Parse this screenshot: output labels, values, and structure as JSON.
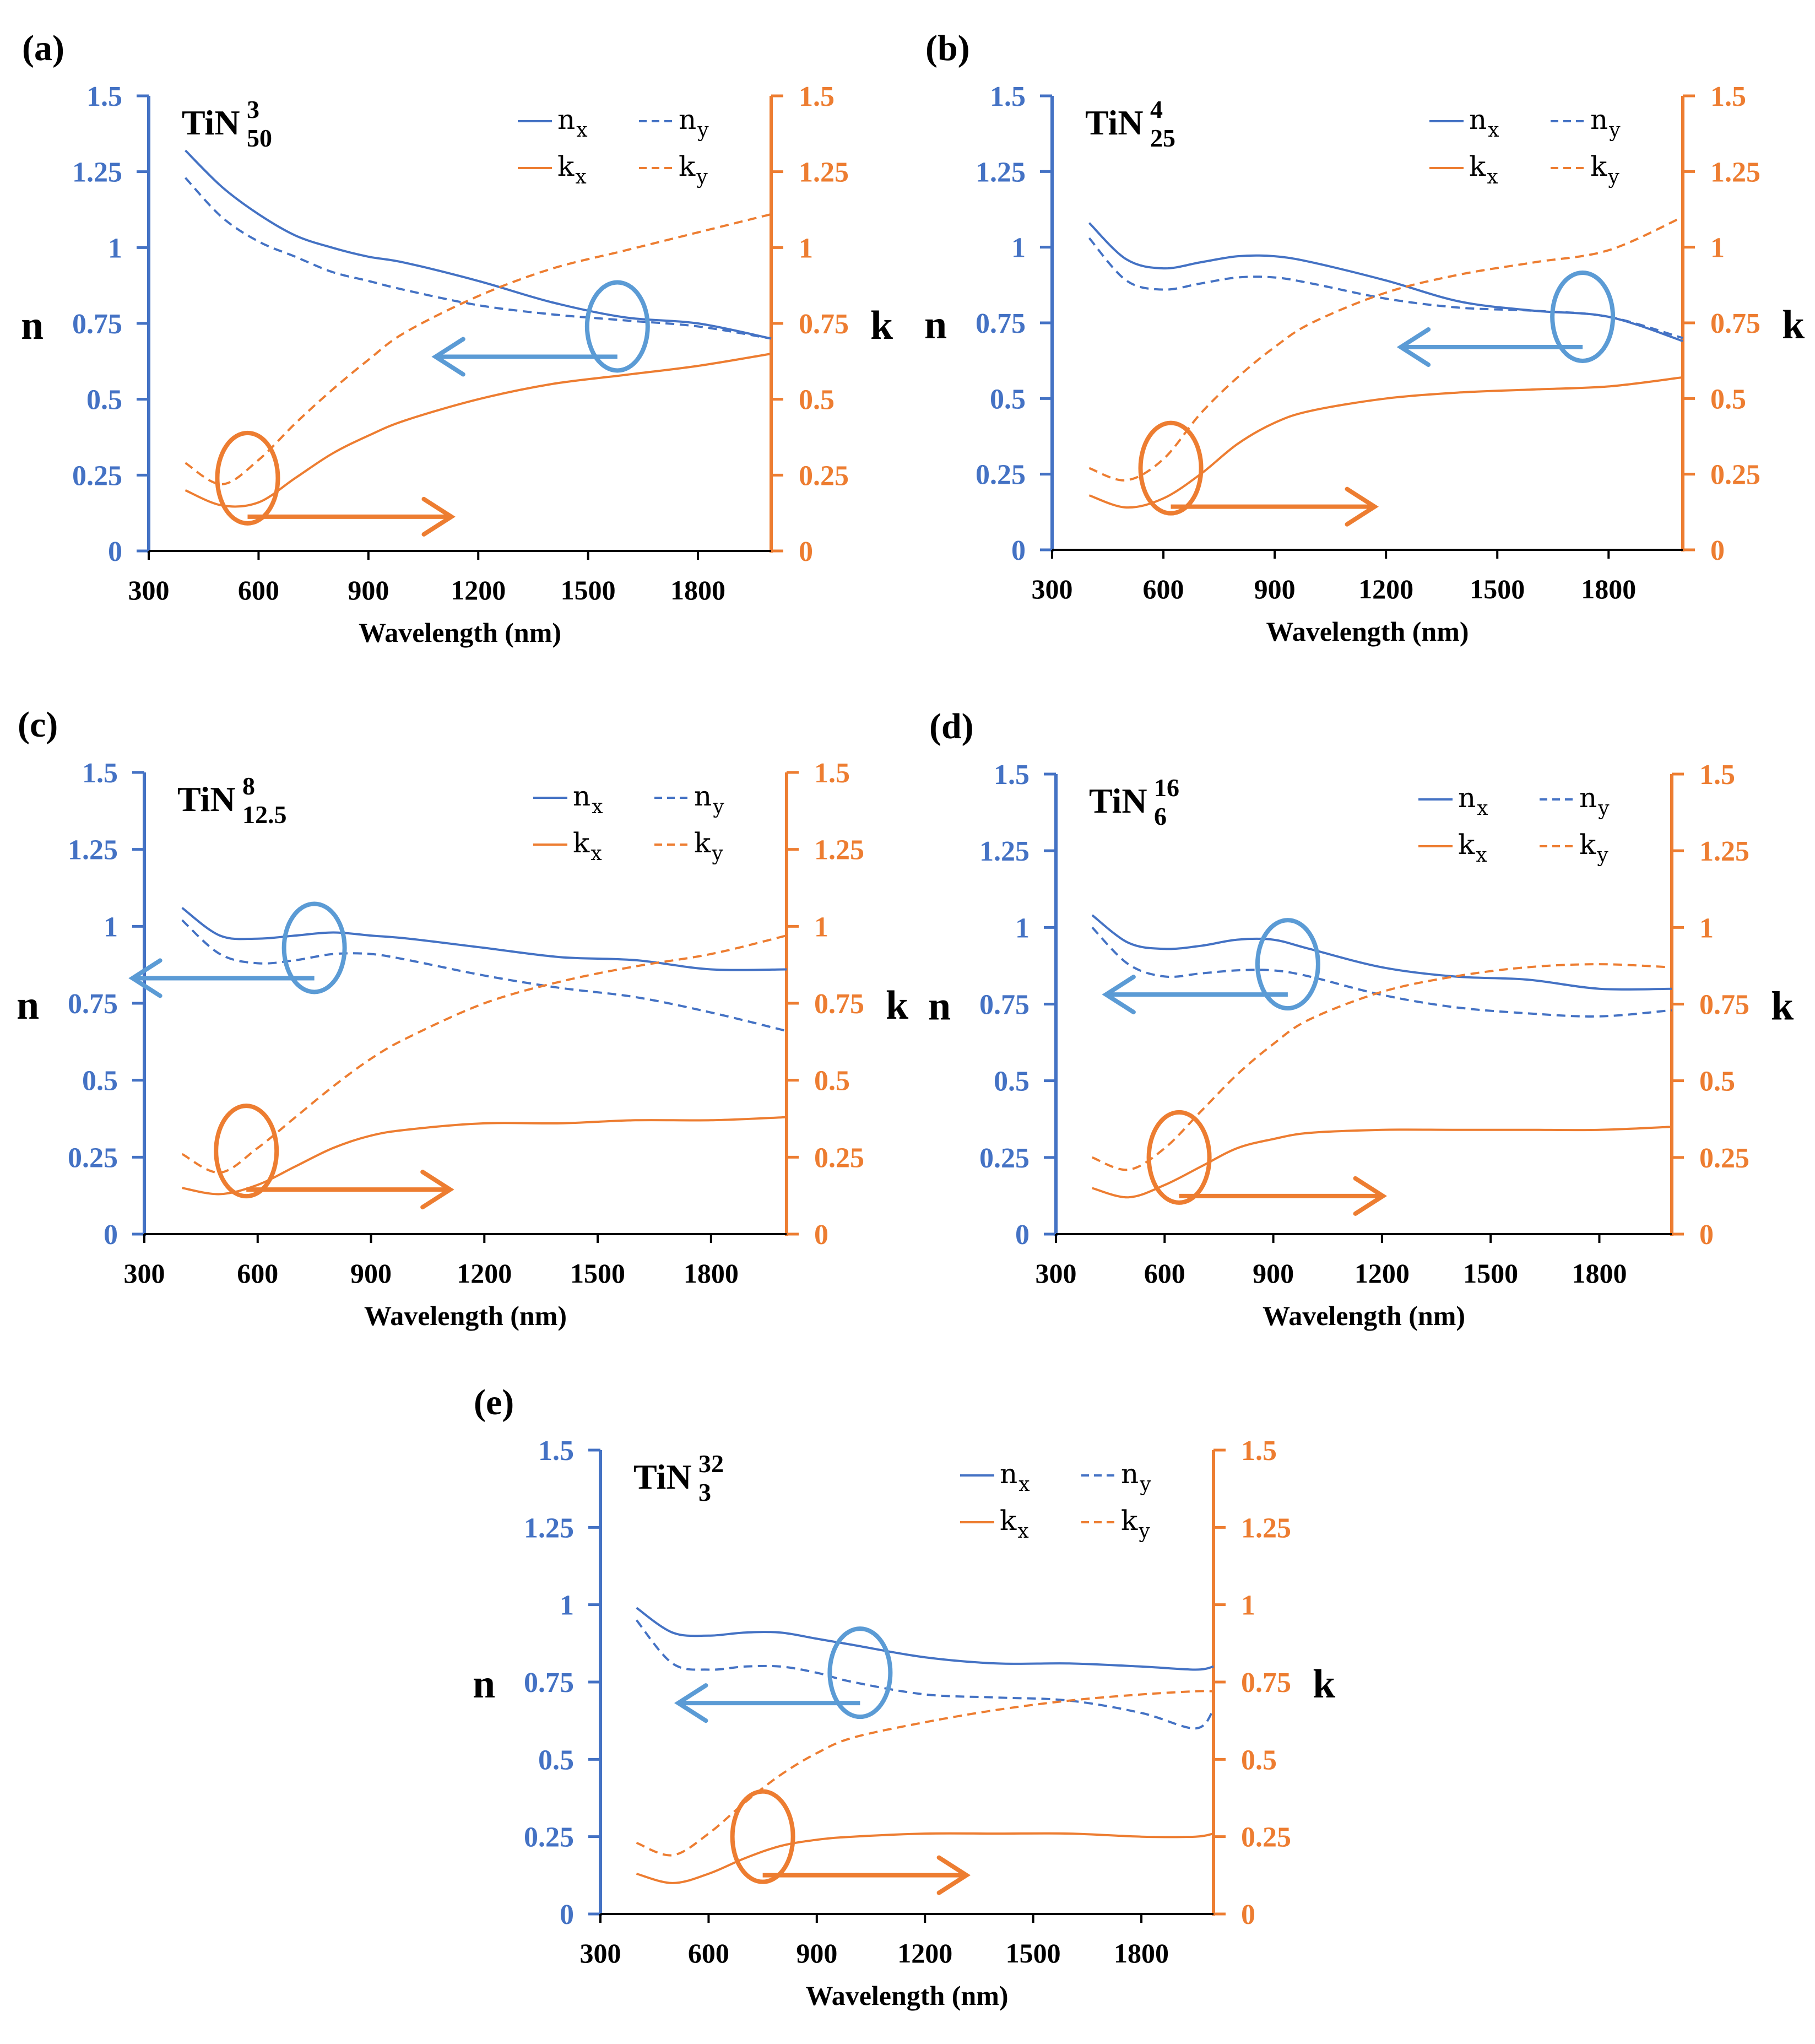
{
  "colors": {
    "n": "#4472C4",
    "k": "#ED7D31",
    "n_marker": "#5B9BD5",
    "k_marker": "#ED7D31"
  },
  "legend": {
    "nx": {
      "main": "n",
      "sub": "x"
    },
    "ny": {
      "main": "n",
      "sub": "y"
    },
    "kx": {
      "main": "k",
      "sub": "x"
    },
    "ky": {
      "main": "k",
      "sub": "y"
    }
  },
  "chart_data": [
    {
      "type": "line",
      "panel": "(a)",
      "title": {
        "main": "TiN",
        "sup": "3",
        "sub": "50"
      },
      "xlabel": "Wavelength (nm)",
      "ylabel_left": "n",
      "ylabel_right": "k",
      "xlim": [
        300,
        2000
      ],
      "ylim": [
        0,
        1.5
      ],
      "xticks": [
        "300",
        "600",
        "900",
        "1200",
        "1500",
        "1800"
      ],
      "yticks": [
        "0",
        "0.25",
        "0.5",
        "0.75",
        "1",
        "1.25",
        "1.5"
      ],
      "x": [
        400,
        500,
        600,
        700,
        800,
        900,
        1000,
        1200,
        1400,
        1600,
        1800,
        2000
      ],
      "series": [
        {
          "name": "n_x",
          "values": [
            1.32,
            1.2,
            1.11,
            1.04,
            1.0,
            0.97,
            0.95,
            0.89,
            0.82,
            0.77,
            0.75,
            0.7
          ]
        },
        {
          "name": "n_y",
          "values": [
            1.23,
            1.1,
            1.02,
            0.97,
            0.92,
            0.89,
            0.86,
            0.81,
            0.78,
            0.76,
            0.74,
            0.7
          ]
        },
        {
          "name": "k_x",
          "values": [
            0.2,
            0.15,
            0.16,
            0.24,
            0.32,
            0.38,
            0.43,
            0.5,
            0.55,
            0.58,
            0.61,
            0.65
          ]
        },
        {
          "name": "k_y",
          "values": [
            0.29,
            0.22,
            0.3,
            0.42,
            0.53,
            0.63,
            0.72,
            0.84,
            0.93,
            0.99,
            1.05,
            1.11
          ]
        }
      ],
      "n_marker": {
        "x": 1580,
        "y": 0.74
      },
      "k_marker": {
        "x": 570,
        "y": 0.24
      }
    },
    {
      "type": "line",
      "panel": "(b)",
      "title": {
        "main": "TiN",
        "sup": "4",
        "sub": "25"
      },
      "xlabel": "Wavelength (nm)",
      "ylabel_left": "n",
      "ylabel_right": "k",
      "xlim": [
        300,
        2000
      ],
      "ylim": [
        0,
        1.5
      ],
      "xticks": [
        "300",
        "600",
        "900",
        "1200",
        "1500",
        "1800"
      ],
      "yticks": [
        "0",
        "0.25",
        "0.5",
        "0.75",
        "1",
        "1.25",
        "1.5"
      ],
      "x": [
        400,
        500,
        600,
        700,
        800,
        900,
        1000,
        1200,
        1400,
        1600,
        1800,
        2000
      ],
      "series": [
        {
          "name": "n_x",
          "values": [
            1.08,
            0.96,
            0.93,
            0.95,
            0.97,
            0.97,
            0.95,
            0.89,
            0.82,
            0.79,
            0.77,
            0.69
          ]
        },
        {
          "name": "n_y",
          "values": [
            1.03,
            0.89,
            0.86,
            0.88,
            0.9,
            0.9,
            0.88,
            0.83,
            0.8,
            0.79,
            0.77,
            0.7
          ]
        },
        {
          "name": "k_x",
          "values": [
            0.18,
            0.14,
            0.17,
            0.25,
            0.35,
            0.42,
            0.46,
            0.5,
            0.52,
            0.53,
            0.54,
            0.57
          ]
        },
        {
          "name": "k_y",
          "values": [
            0.27,
            0.23,
            0.3,
            0.45,
            0.57,
            0.67,
            0.75,
            0.85,
            0.91,
            0.95,
            0.99,
            1.1
          ]
        }
      ],
      "n_marker": {
        "x": 1730,
        "y": 0.77
      },
      "k_marker": {
        "x": 620,
        "y": 0.27
      }
    },
    {
      "type": "line",
      "panel": "(c)",
      "title": {
        "main": "TiN",
        "sup": "8",
        "sub": "12.5"
      },
      "xlabel": "Wavelength (nm)",
      "ylabel_left": "n",
      "ylabel_right": "k",
      "xlim": [
        300,
        2000
      ],
      "ylim": [
        0,
        1.5
      ],
      "xticks": [
        "300",
        "600",
        "900",
        "1200",
        "1500",
        "1800"
      ],
      "yticks": [
        "0",
        "0.25",
        "0.5",
        "0.75",
        "1",
        "1.25",
        "1.5"
      ],
      "x": [
        400,
        500,
        600,
        700,
        800,
        900,
        1000,
        1200,
        1400,
        1600,
        1800,
        2000
      ],
      "series": [
        {
          "name": "n_x",
          "values": [
            1.06,
            0.97,
            0.96,
            0.97,
            0.98,
            0.97,
            0.96,
            0.93,
            0.9,
            0.89,
            0.86,
            0.86
          ]
        },
        {
          "name": "n_y",
          "values": [
            1.02,
            0.91,
            0.88,
            0.89,
            0.91,
            0.91,
            0.89,
            0.84,
            0.8,
            0.77,
            0.72,
            0.66
          ]
        },
        {
          "name": "k_x",
          "values": [
            0.15,
            0.13,
            0.16,
            0.22,
            0.28,
            0.32,
            0.34,
            0.36,
            0.36,
            0.37,
            0.37,
            0.38
          ]
        },
        {
          "name": "k_y",
          "values": [
            0.26,
            0.2,
            0.28,
            0.38,
            0.48,
            0.57,
            0.64,
            0.75,
            0.82,
            0.87,
            0.91,
            0.97
          ]
        }
      ],
      "n_marker": {
        "x": 750,
        "y": 0.93
      },
      "k_marker": {
        "x": 570,
        "y": 0.27
      }
    },
    {
      "type": "line",
      "panel": "(d)",
      "title": {
        "main": "TiN",
        "sup": "16",
        "sub": "6"
      },
      "xlabel": "Wavelength (nm)",
      "ylabel_left": "n",
      "ylabel_right": "k",
      "xlim": [
        300,
        2000
      ],
      "ylim": [
        0,
        1.5
      ],
      "xticks": [
        "300",
        "600",
        "900",
        "1200",
        "1500",
        "1800"
      ],
      "yticks": [
        "0",
        "0.25",
        "0.5",
        "0.75",
        "1",
        "1.25",
        "1.5"
      ],
      "x": [
        400,
        500,
        600,
        700,
        800,
        900,
        1000,
        1200,
        1400,
        1600,
        1800,
        2000
      ],
      "series": [
        {
          "name": "n_x",
          "values": [
            1.04,
            0.95,
            0.93,
            0.94,
            0.96,
            0.96,
            0.93,
            0.87,
            0.84,
            0.83,
            0.8,
            0.8
          ]
        },
        {
          "name": "n_y",
          "values": [
            1.0,
            0.88,
            0.84,
            0.85,
            0.86,
            0.86,
            0.84,
            0.78,
            0.74,
            0.72,
            0.71,
            0.73
          ]
        },
        {
          "name": "k_x",
          "values": [
            0.15,
            0.12,
            0.16,
            0.22,
            0.28,
            0.31,
            0.33,
            0.34,
            0.34,
            0.34,
            0.34,
            0.35
          ]
        },
        {
          "name": "k_y",
          "values": [
            0.25,
            0.21,
            0.28,
            0.4,
            0.52,
            0.62,
            0.7,
            0.79,
            0.84,
            0.87,
            0.88,
            0.87
          ]
        }
      ],
      "n_marker": {
        "x": 940,
        "y": 0.88
      },
      "k_marker": {
        "x": 640,
        "y": 0.25
      }
    },
    {
      "type": "line",
      "panel": "(e)",
      "title": {
        "main": "TiN",
        "sup": "32",
        "sub": "3"
      },
      "xlabel": "Wavelength (nm)",
      "ylabel_left": "n",
      "ylabel_right": "k",
      "xlim": [
        300,
        2000
      ],
      "ylim": [
        0,
        1.5
      ],
      "xticks": [
        "300",
        "600",
        "900",
        "1200",
        "1500",
        "1800"
      ],
      "yticks": [
        "0",
        "0.25",
        "0.5",
        "0.75",
        "1",
        "1.25",
        "1.5"
      ],
      "x": [
        400,
        500,
        600,
        700,
        800,
        900,
        1000,
        1200,
        1400,
        1600,
        1800,
        1950,
        2000
      ],
      "series": [
        {
          "name": "n_x",
          "values": [
            0.99,
            0.91,
            0.9,
            0.91,
            0.91,
            0.89,
            0.87,
            0.83,
            0.81,
            0.81,
            0.8,
            0.79,
            0.8
          ]
        },
        {
          "name": "n_y",
          "values": [
            0.95,
            0.81,
            0.79,
            0.8,
            0.8,
            0.78,
            0.75,
            0.71,
            0.7,
            0.69,
            0.65,
            0.6,
            0.66
          ]
        },
        {
          "name": "k_x",
          "values": [
            0.13,
            0.1,
            0.13,
            0.18,
            0.22,
            0.24,
            0.25,
            0.26,
            0.26,
            0.26,
            0.25,
            0.25,
            0.26
          ]
        },
        {
          "name": "k_y",
          "values": [
            0.23,
            0.19,
            0.26,
            0.36,
            0.45,
            0.52,
            0.57,
            0.62,
            0.66,
            0.69,
            0.71,
            0.72,
            0.72
          ]
        }
      ],
      "n_marker": {
        "x": 1020,
        "y": 0.78
      },
      "k_marker": {
        "x": 750,
        "y": 0.25
      }
    }
  ]
}
